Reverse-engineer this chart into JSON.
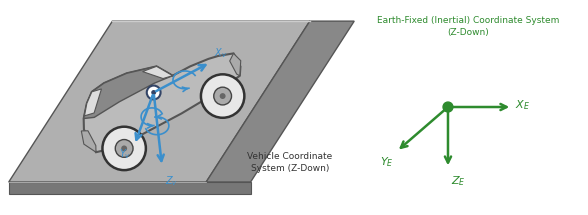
{
  "fig_width": 5.88,
  "fig_height": 2.15,
  "dpi": 100,
  "bg_color": "#ffffff",
  "blue_color": "#3B8FCC",
  "green_color": "#2E8B2E",
  "car_text": "Vehicle Coordinate\nSystem (Z-Down)",
  "earth_title": "Earth-Fixed (Inertial) Coordinate System\n(Z-Down)",
  "ramp_top_color": "#B0B0B0",
  "ramp_side_color": "#888888",
  "ramp_edge_color": "#555555",
  "car_body_color": "#BBBBBB",
  "car_dark_color": "#555555",
  "car_roof_color": "#888888"
}
